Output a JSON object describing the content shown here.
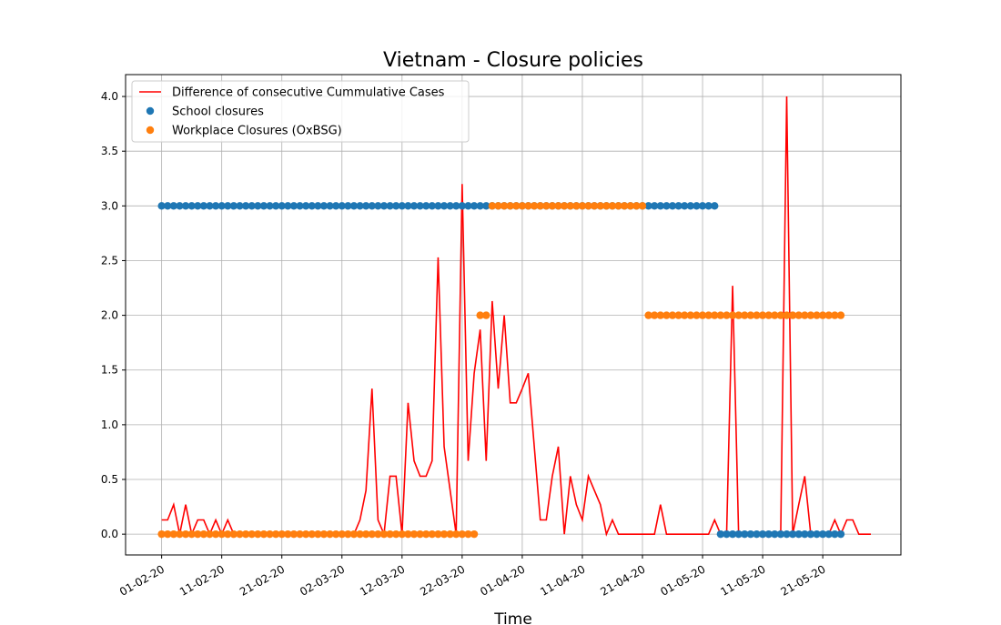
{
  "chart_data": {
    "type": "line",
    "title": "Vietnam - Closure policies",
    "xlabel": "Time",
    "grid": true,
    "legend": "upper left",
    "xlim": [
      "2020-01-26",
      "2020-06-03"
    ],
    "ylim": [
      -0.19,
      4.2
    ],
    "xticks": [
      {
        "value": "2020-02-01",
        "label": "01-02-20"
      },
      {
        "value": "2020-02-11",
        "label": "11-02-20"
      },
      {
        "value": "2020-02-21",
        "label": "21-02-20"
      },
      {
        "value": "2020-03-02",
        "label": "02-03-20"
      },
      {
        "value": "2020-03-12",
        "label": "12-03-20"
      },
      {
        "value": "2020-03-22",
        "label": "22-03-20"
      },
      {
        "value": "2020-04-01",
        "label": "01-04-20"
      },
      {
        "value": "2020-04-11",
        "label": "11-04-20"
      },
      {
        "value": "2020-04-21",
        "label": "21-04-20"
      },
      {
        "value": "2020-05-01",
        "label": "01-05-20"
      },
      {
        "value": "2020-05-11",
        "label": "11-05-20"
      },
      {
        "value": "2020-05-21",
        "label": "21-05-20"
      }
    ],
    "yticks": [
      {
        "value": 0,
        "label": "0.0"
      },
      0.5,
      {
        "value": 1,
        "label": "1.0"
      },
      1.5,
      {
        "value": 2,
        "label": "2.0"
      },
      2.5,
      {
        "value": 3,
        "label": "3.0"
      },
      3.5,
      {
        "value": 4,
        "label": "4.0"
      }
    ],
    "x": [
      "2020-02-01",
      "2020-02-02",
      "2020-02-03",
      "2020-02-04",
      "2020-02-05",
      "2020-02-06",
      "2020-02-07",
      "2020-02-08",
      "2020-02-09",
      "2020-02-10",
      "2020-02-11",
      "2020-02-12",
      "2020-02-13",
      "2020-02-14",
      "2020-02-15",
      "2020-02-16",
      "2020-02-17",
      "2020-02-18",
      "2020-02-19",
      "2020-02-20",
      "2020-02-21",
      "2020-02-22",
      "2020-02-23",
      "2020-02-24",
      "2020-02-25",
      "2020-02-26",
      "2020-02-27",
      "2020-02-28",
      "2020-02-29",
      "2020-03-01",
      "2020-03-02",
      "2020-03-03",
      "2020-03-04",
      "2020-03-05",
      "2020-03-06",
      "2020-03-07",
      "2020-03-08",
      "2020-03-09",
      "2020-03-10",
      "2020-03-11",
      "2020-03-12",
      "2020-03-13",
      "2020-03-14",
      "2020-03-15",
      "2020-03-16",
      "2020-03-17",
      "2020-03-18",
      "2020-03-19",
      "2020-03-20",
      "2020-03-21",
      "2020-03-22",
      "2020-03-23",
      "2020-03-24",
      "2020-03-25",
      "2020-03-26",
      "2020-03-27",
      "2020-03-28",
      "2020-03-29",
      "2020-03-30",
      "2020-03-31",
      "2020-04-01",
      "2020-04-02",
      "2020-04-03",
      "2020-04-04",
      "2020-04-05",
      "2020-04-06",
      "2020-04-07",
      "2020-04-08",
      "2020-04-09",
      "2020-04-10",
      "2020-04-11",
      "2020-04-12",
      "2020-04-13",
      "2020-04-14",
      "2020-04-15",
      "2020-04-16",
      "2020-04-17",
      "2020-04-18",
      "2020-04-19",
      "2020-04-20",
      "2020-04-21",
      "2020-04-22",
      "2020-04-23",
      "2020-04-24",
      "2020-04-25",
      "2020-04-26",
      "2020-04-27",
      "2020-04-28",
      "2020-04-29",
      "2020-04-30",
      "2020-05-01",
      "2020-05-02",
      "2020-05-03",
      "2020-05-04",
      "2020-05-05",
      "2020-05-06",
      "2020-05-07",
      "2020-05-08",
      "2020-05-09",
      "2020-05-10",
      "2020-05-11",
      "2020-05-12",
      "2020-05-13",
      "2020-05-14",
      "2020-05-15",
      "2020-05-16",
      "2020-05-17",
      "2020-05-18",
      "2020-05-19",
      "2020-05-20",
      "2020-05-21",
      "2020-05-22",
      "2020-05-23",
      "2020-05-24",
      "2020-05-25",
      "2020-05-26",
      "2020-05-27",
      "2020-05-28",
      "2020-05-29"
    ],
    "series": [
      {
        "name": "Difference of consecutive Cummulative Cases",
        "type": "line",
        "color": "#ff0000",
        "values": [
          0.13,
          0.13,
          0.27,
          0,
          0.27,
          0,
          0.13,
          0.13,
          0,
          0.13,
          0,
          0.13,
          0,
          0,
          0,
          0,
          0,
          0,
          0,
          0,
          0,
          0,
          0,
          0,
          0,
          0,
          0,
          0,
          0,
          0,
          0,
          0,
          0,
          0.13,
          0.4,
          1.33,
          0.13,
          0,
          0.53,
          0.53,
          0,
          1.2,
          0.67,
          0.53,
          0.53,
          0.67,
          2.53,
          0.8,
          0.4,
          0,
          3.2,
          0.67,
          1.47,
          1.87,
          0.67,
          2.13,
          1.33,
          2.0,
          1.2,
          1.2,
          1.33,
          1.47,
          0.8,
          0.13,
          0.13,
          0.53,
          0.8,
          0,
          0.53,
          0.27,
          0.13,
          0.53,
          0.4,
          0.27,
          0,
          0.13,
          0,
          0,
          0,
          0,
          0,
          0,
          0,
          0.27,
          0,
          0,
          0,
          0,
          0,
          0,
          0,
          0,
          0.13,
          0,
          0,
          2.27,
          0,
          0,
          0,
          0,
          0,
          0,
          0,
          0,
          4.0,
          0,
          0.27,
          0.53,
          0,
          0,
          0,
          0,
          0.13,
          0,
          0.13,
          0.13,
          0,
          0,
          0
        ]
      },
      {
        "name": "School closures",
        "type": "scatter",
        "color": "#1f77b4",
        "values": [
          3,
          3,
          3,
          3,
          3,
          3,
          3,
          3,
          3,
          3,
          3,
          3,
          3,
          3,
          3,
          3,
          3,
          3,
          3,
          3,
          3,
          3,
          3,
          3,
          3,
          3,
          3,
          3,
          3,
          3,
          3,
          3,
          3,
          3,
          3,
          3,
          3,
          3,
          3,
          3,
          3,
          3,
          3,
          3,
          3,
          3,
          3,
          3,
          3,
          3,
          3,
          3,
          3,
          3,
          3,
          3,
          3,
          3,
          3,
          3,
          3,
          3,
          3,
          3,
          3,
          3,
          3,
          3,
          3,
          3,
          3,
          3,
          3,
          3,
          3,
          3,
          3,
          3,
          3,
          3,
          3,
          3,
          3,
          3,
          3,
          3,
          3,
          3,
          3,
          3,
          3,
          3,
          3,
          0,
          0,
          0,
          0,
          0,
          0,
          0,
          0,
          0,
          0,
          0,
          0,
          0,
          0,
          0,
          0,
          0,
          0,
          0,
          0,
          0,
          null,
          null,
          null,
          null,
          null
        ]
      },
      {
        "name": "Workplace Closures (OxBSG)",
        "type": "scatter",
        "color": "#ff7f0e",
        "values": [
          0,
          0,
          0,
          0,
          0,
          0,
          0,
          0,
          0,
          0,
          0,
          0,
          0,
          0,
          0,
          0,
          0,
          0,
          0,
          0,
          0,
          0,
          0,
          0,
          0,
          0,
          0,
          0,
          0,
          0,
          0,
          0,
          0,
          0,
          0,
          0,
          0,
          0,
          0,
          0,
          0,
          0,
          0,
          0,
          0,
          0,
          0,
          0,
          0,
          0,
          0,
          0,
          0,
          2,
          2,
          3,
          3,
          3,
          3,
          3,
          3,
          3,
          3,
          3,
          3,
          3,
          3,
          3,
          3,
          3,
          3,
          3,
          3,
          3,
          3,
          3,
          3,
          3,
          3,
          3,
          3,
          2,
          2,
          2,
          2,
          2,
          2,
          2,
          2,
          2,
          2,
          2,
          2,
          2,
          2,
          2,
          2,
          2,
          2,
          2,
          2,
          2,
          2,
          2,
          2,
          2,
          2,
          2,
          2,
          2,
          2,
          2,
          2,
          2,
          null,
          null,
          null,
          null,
          null
        ]
      }
    ]
  }
}
